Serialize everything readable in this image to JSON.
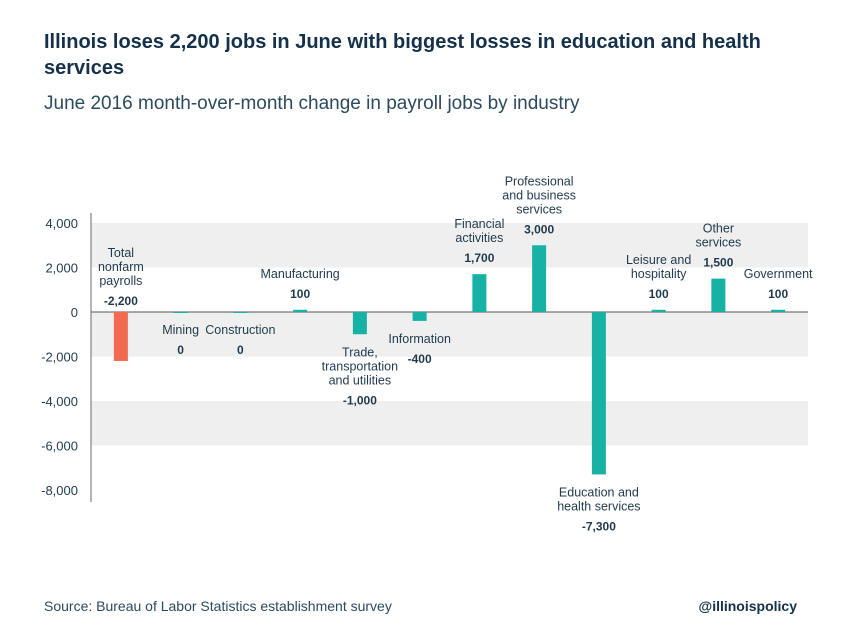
{
  "title": "Illinois loses 2,200 jobs in June with biggest losses in education and health services",
  "subtitle": "June 2016 month-over-month change in payroll jobs by industry",
  "source": "Source: Bureau of Labor Statistics establishment survey",
  "handle": "@illinoispolicy",
  "colors": {
    "highlight": "#f26a4f",
    "bar": "#15b2a5",
    "band": "#efefef"
  },
  "chart_data": {
    "type": "bar",
    "title": "Illinois loses 2,200 jobs in June with biggest losses in education and health services",
    "subtitle": "June 2016 month-over-month change in payroll jobs by industry",
    "ylim": [
      -8000,
      4000
    ],
    "yticks": [
      4000,
      2000,
      0,
      -2000,
      -4000,
      -6000,
      -8000
    ],
    "ytick_labels": [
      "4,000",
      "2,000",
      "0",
      "-2,000",
      "-4,000",
      "-6,000",
      "-8,000"
    ],
    "grid": "alternating horizontal bands",
    "categories": [
      "Total nonfarm payrolls",
      "Mining",
      "Construction",
      "Manufacturing",
      "Trade, transportation and utilities",
      "Information",
      "Financial activities",
      "Professional and business services",
      "Education and health services",
      "Leisure and hospitality",
      "Other services",
      "Government"
    ],
    "category_label_lines": [
      [
        "Total",
        "nonfarm",
        "payrolls"
      ],
      [
        "Mining"
      ],
      [
        "Construction"
      ],
      [
        "Manufacturing"
      ],
      [
        "Trade,",
        "transportation",
        "and utilities"
      ],
      [
        "Information"
      ],
      [
        "Financial",
        "activities"
      ],
      [
        "Professional",
        "and business",
        "services"
      ],
      [
        "Education and",
        "health services"
      ],
      [
        "Leisure and",
        "hospitality"
      ],
      [
        "Other",
        "services"
      ],
      [
        "Government"
      ]
    ],
    "values": [
      -2200,
      0,
      0,
      100,
      -1000,
      -400,
      1700,
      3000,
      -7300,
      100,
      1500,
      100
    ],
    "value_labels": [
      "-2,200",
      "0",
      "0",
      "100",
      "-1,000",
      "-400",
      "1,700",
      "3,000",
      "-7,300",
      "100",
      "1,500",
      "100"
    ],
    "highlight_index": 0
  }
}
